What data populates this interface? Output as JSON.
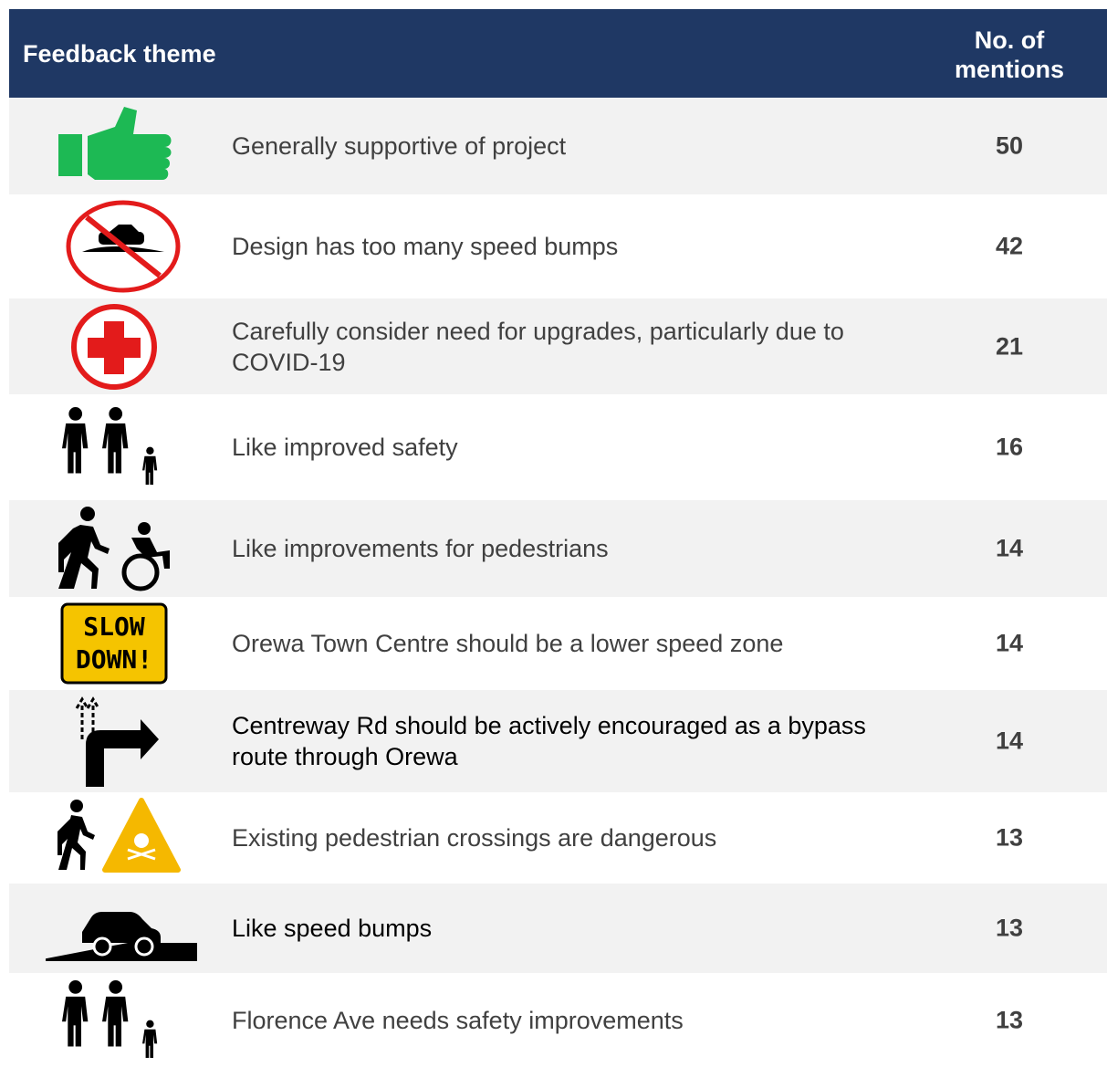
{
  "table": {
    "header": [
      "Feedback theme",
      "No. of mentions"
    ],
    "rows": [
      [
        "Generally supportive of project",
        "50"
      ],
      [
        "Design has too many speed bumps",
        "42"
      ],
      [
        "Carefully consider need for upgrades, particularly due to COVID-19",
        "21"
      ],
      [
        "Like improved safety",
        "16"
      ],
      [
        "Like improvements for pedestrians",
        "14"
      ],
      [
        "Orewa Town Centre should be a lower speed zone",
        "14"
      ],
      [
        "Centreway Rd should be actively encouraged as a bypass route through Orewa",
        "14"
      ],
      [
        "Existing pedestrian crossings are dangerous",
        "13"
      ],
      [
        "Like speed bumps",
        "13"
      ],
      [
        "Florence Ave needs safety improvements",
        "13"
      ]
    ],
    "icon_text": [
      "SLOW",
      "DOWN!"
    ]
  }
}
